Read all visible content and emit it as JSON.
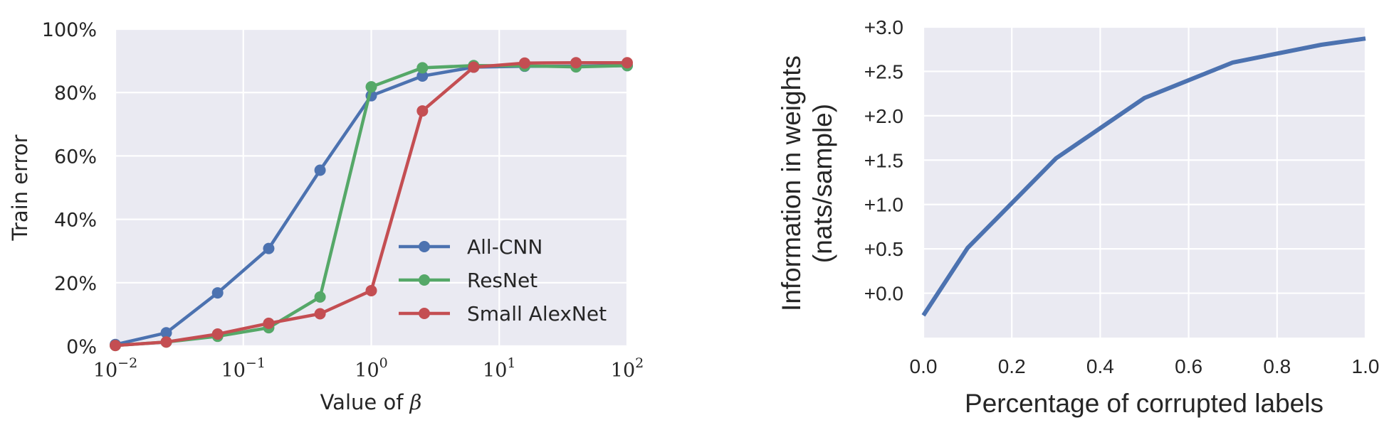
{
  "chart_data": [
    {
      "type": "line",
      "title": "",
      "xlabel": "Value of",
      "xlabel_symbol": "β",
      "ylabel": "Train error",
      "xscale": "log",
      "xlim": [
        0.01,
        100
      ],
      "ylim": [
        0,
        100
      ],
      "x_ticks": [
        {
          "base": "10",
          "exp": "−2"
        },
        {
          "base": "10",
          "exp": "−1"
        },
        {
          "base": "10",
          "exp": "0"
        },
        {
          "base": "10",
          "exp": "1"
        },
        {
          "base": "10",
          "exp": "2"
        }
      ],
      "y_ticks": [
        "0%",
        "20%",
        "40%",
        "60%",
        "80%",
        "100%"
      ],
      "legend_position": "lower-right",
      "series": [
        {
          "name": "All-CNN",
          "color": "#4C72B0",
          "x": [
            0.01,
            0.025,
            0.063,
            0.158,
            0.398,
            1.0,
            2.51,
            6.31,
            15.8,
            39.8,
            100
          ],
          "y": [
            0.5,
            4.2,
            16.8,
            30.8,
            55.5,
            79.0,
            85.2,
            88.0,
            88.3,
            88.3,
            88.5
          ]
        },
        {
          "name": "ResNet",
          "color": "#55A868",
          "x": [
            0.01,
            0.025,
            0.063,
            0.158,
            0.398,
            1.0,
            2.51,
            6.31,
            15.8,
            39.8,
            100
          ],
          "y": [
            0.2,
            1.3,
            3.1,
            5.8,
            15.5,
            81.8,
            87.8,
            88.5,
            88.4,
            88.1,
            88.5
          ]
        },
        {
          "name": "Small AlexNet",
          "color": "#C44E52",
          "x": [
            0.01,
            0.025,
            0.063,
            0.158,
            0.398,
            1.0,
            2.51,
            6.31,
            15.8,
            39.8,
            100
          ],
          "y": [
            0.2,
            1.3,
            3.8,
            7.2,
            10.2,
            17.5,
            74.2,
            88.0,
            89.3,
            89.4,
            89.4
          ]
        }
      ]
    },
    {
      "type": "line",
      "title": "",
      "xlabel": "Percentage of corrupted labels",
      "ylabel_line1": "Information in weights",
      "ylabel_line2": "(nats/sample)",
      "xlim": [
        0.0,
        1.0
      ],
      "ylim": [
        -0.5,
        3.0
      ],
      "x_ticks": [
        "0.0",
        "0.2",
        "0.4",
        "0.6",
        "0.8",
        "1.0"
      ],
      "x_tick_values": [
        0.0,
        0.2,
        0.4,
        0.6,
        0.8,
        1.0
      ],
      "y_ticks": [
        "+0.0",
        "+0.5",
        "+1.0",
        "+1.5",
        "+2.0",
        "+2.5",
        "+3.0"
      ],
      "y_tick_values": [
        0.0,
        0.5,
        1.0,
        1.5,
        2.0,
        2.5,
        3.0
      ],
      "series": [
        {
          "name": "Information",
          "color": "#4C72B0",
          "x": [
            0.0,
            0.1,
            0.3,
            0.5,
            0.7,
            0.9,
            1.0
          ],
          "y": [
            -0.25,
            0.51,
            1.52,
            2.2,
            2.6,
            2.8,
            2.87
          ]
        }
      ]
    }
  ]
}
